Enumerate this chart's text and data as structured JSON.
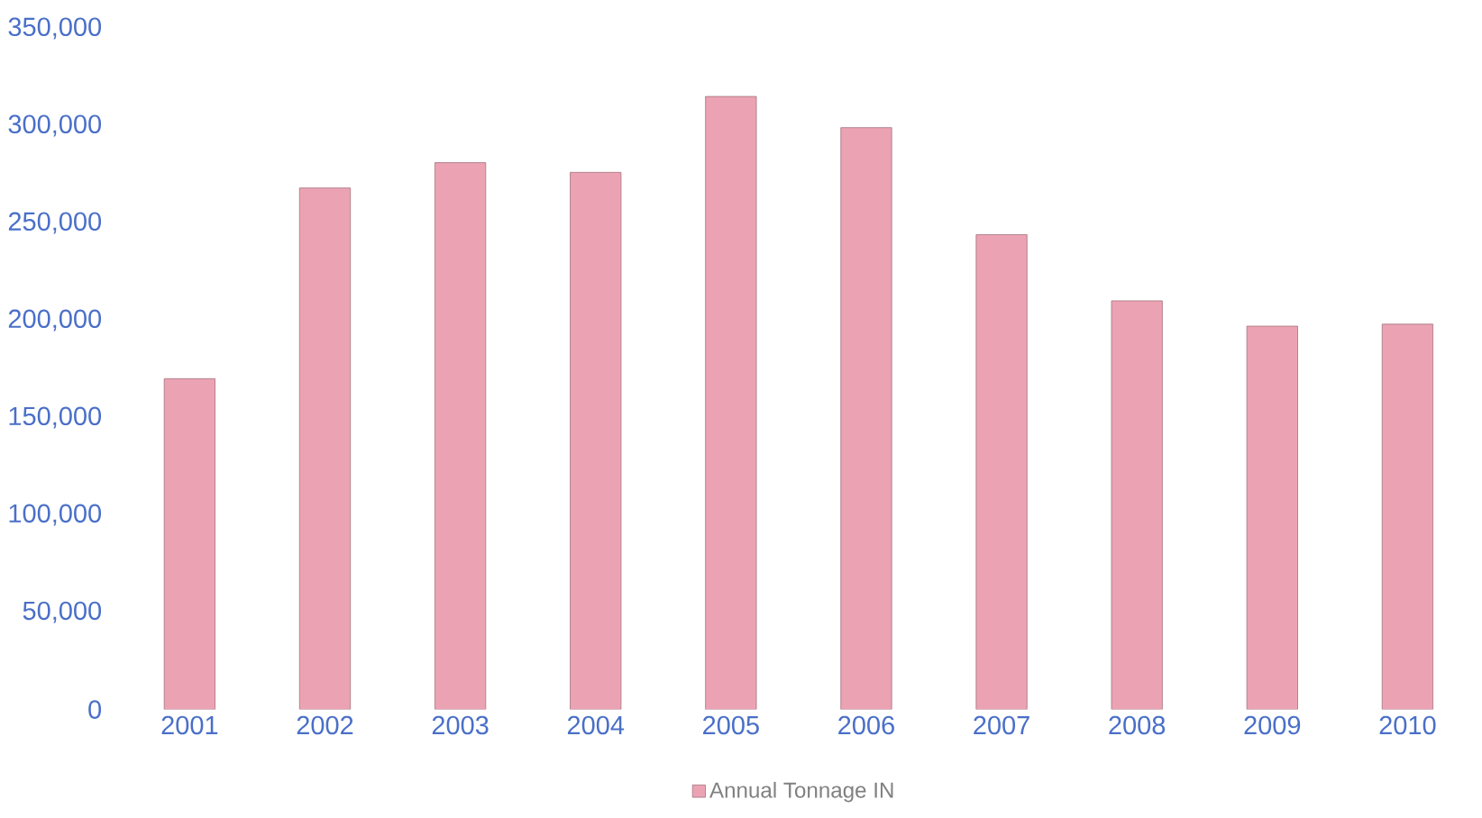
{
  "chart_data": {
    "type": "bar",
    "categories": [
      "2001",
      "2002",
      "2003",
      "2004",
      "2005",
      "2006",
      "2007",
      "2008",
      "2009",
      "2010"
    ],
    "series": [
      {
        "name": "Annual Tonnage IN",
        "color": "#eba3b4",
        "values": [
          170000,
          268000,
          281000,
          276000,
          315000,
          299000,
          244000,
          210000,
          197000,
          198000
        ]
      }
    ],
    "ylim": [
      0,
      350000
    ],
    "yticks": [
      {
        "value": 0,
        "label": "0"
      },
      {
        "value": 50000,
        "label": "50,000"
      },
      {
        "value": 100000,
        "label": "100,000"
      },
      {
        "value": 150000,
        "label": "150,000"
      },
      {
        "value": 200000,
        "label": "200,000"
      },
      {
        "value": 250000,
        "label": "250,000"
      },
      {
        "value": 300000,
        "label": "300,000"
      },
      {
        "value": 350000,
        "label": "350,000"
      }
    ],
    "legend": "bottom",
    "grid": false
  }
}
